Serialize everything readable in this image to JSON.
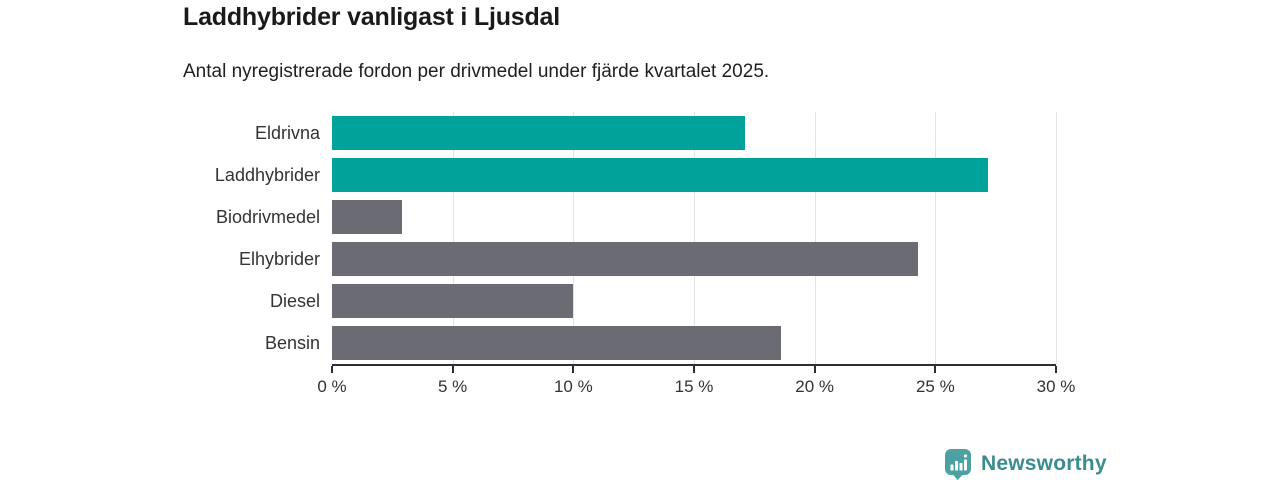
{
  "chart_data": {
    "type": "bar",
    "orientation": "horizontal",
    "title": "Laddhybrider vanligast i Ljusdal",
    "subtitle": "Antal nyregistrerade fordon per drivmedel under fjärde kvartalet 2025.",
    "categories": [
      "Eldrivna",
      "Laddhybrider",
      "Biodrivmedel",
      "Elhybrider",
      "Diesel",
      "Bensin"
    ],
    "values": [
      17.1,
      27.2,
      2.9,
      24.3,
      10,
      18.6
    ],
    "unit": "%",
    "xlabel": "",
    "ylabel": "",
    "xlim": [
      0,
      30
    ],
    "xticks": [
      0,
      5,
      10,
      15,
      20,
      25,
      30
    ],
    "xtick_labels": [
      "0 %",
      "5 %",
      "10 %",
      "15 %",
      "20 %",
      "25 %",
      "30 %"
    ],
    "bar_colors": [
      "#00a29a",
      "#00a29a",
      "#6b6b74",
      "#6b6b74",
      "#6b6b74",
      "#6b6b74"
    ],
    "grid": true,
    "legend_position": "none"
  },
  "branding": {
    "logo_text": "Newsworthy",
    "logo_text_color": "#3b8d8d",
    "logo_icon": "newsworthy-chart-bubble-icon",
    "logo_icon_color": "#4ca2a2"
  },
  "colors": {
    "highlight_bar": "#00a29a",
    "default_bar": "#6b6b74",
    "gridline": "#e3e3e3",
    "axis": "#2e2e2e",
    "label_text": "#333333",
    "title_text": "#1a1a1a"
  }
}
